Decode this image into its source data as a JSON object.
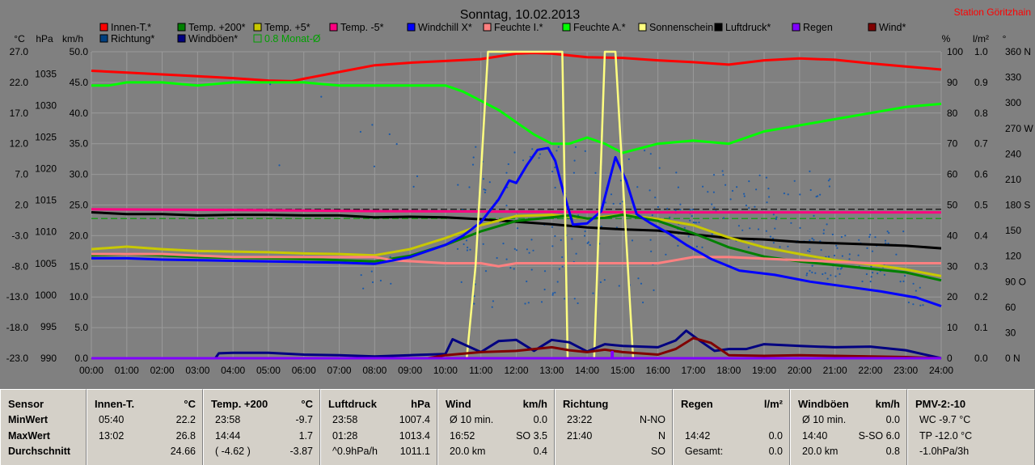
{
  "title": "Sonntag, 10.02.2013",
  "station": "Station Göritzhain",
  "chart_data": {
    "type": "line",
    "x_ticks": [
      "00:00",
      "01:00",
      "02:00",
      "03:00",
      "04:00",
      "05:00",
      "06:00",
      "07:00",
      "08:00",
      "09:00",
      "10:00",
      "11:00",
      "12:00",
      "13:00",
      "14:00",
      "15:00",
      "16:00",
      "17:00",
      "18:00",
      "19:00",
      "20:00",
      "21:00",
      "22:00",
      "23:00",
      "24:00"
    ],
    "left_axes": {
      "celsius": {
        "unit": "°C",
        "ticks": [
          "27.0",
          "22.0",
          "17.0",
          "12.0",
          "7.0",
          "2.0",
          "-3.0",
          "-8.0",
          "-13.0",
          "-18.0",
          "-23.0"
        ]
      },
      "hpa": {
        "unit": "hPa",
        "ticks": [
          "1035",
          "1030",
          "1025",
          "1020",
          "1015",
          "1010",
          "1005",
          "1000",
          "995",
          "990"
        ]
      },
      "kmh": {
        "unit": "km/h",
        "ticks": [
          "50.0",
          "45.0",
          "40.0",
          "35.0",
          "30.0",
          "25.0",
          "20.0",
          "15.0",
          "10.0",
          "5.0",
          "0.0"
        ],
        "range": [
          0,
          50
        ]
      }
    },
    "right_axes": {
      "percent": {
        "unit": "%",
        "ticks": [
          "100",
          "90",
          "80",
          "70",
          "60",
          "50",
          "40",
          "30",
          "20",
          "10",
          "0"
        ]
      },
      "lm2": {
        "unit": "l/m²",
        "ticks": [
          "1.0",
          "0.9",
          "0.8",
          "0.7",
          "0.6",
          "0.5",
          "0.4",
          "0.3",
          "0.2",
          "0.1",
          "0.0"
        ]
      },
      "deg": {
        "unit": "°",
        "ticks": [
          "360 N",
          "330",
          "300",
          "270 W",
          "240",
          "210",
          "180 S",
          "150",
          "120",
          "90 O",
          "60",
          "30",
          "0 N"
        ]
      }
    },
    "legend": [
      {
        "name": "Innen-T.*",
        "color": "#ff0000"
      },
      {
        "name": "Temp. +200*",
        "color": "#008000"
      },
      {
        "name": "Temp. +5*",
        "color": "#c8c800"
      },
      {
        "name": "Temp. -5*",
        "color": "#ff0080"
      },
      {
        "name": "Windchill X*",
        "color": "#0000ff"
      },
      {
        "name": "Feuchte I.*",
        "color": "#ff8080"
      },
      {
        "name": "Feuchte A.*",
        "color": "#00ff00"
      },
      {
        "name": "Sonnenschein",
        "color": "#ffff80"
      },
      {
        "name": "Luftdruck*",
        "color": "#000000"
      },
      {
        "name": "Regen",
        "color": "#8000ff"
      },
      {
        "name": "Wind*",
        "color": "#800000"
      },
      {
        "name": "Richtung*",
        "color": "#004080"
      },
      {
        "name": "Windböen*",
        "color": "#000080"
      },
      {
        "name": "0.8 Monat-Ø",
        "color": "#00a000"
      }
    ],
    "series": [
      {
        "name": "Innen-T.*",
        "axis": "celsius",
        "color": "#ff0000",
        "x": [
          0,
          1,
          2,
          3,
          4,
          5,
          5.67,
          6,
          7,
          8,
          9,
          10,
          11,
          12,
          12.5,
          13,
          14,
          15,
          16,
          17,
          18,
          19,
          20,
          21,
          22,
          23,
          24
        ],
        "y": [
          23.9,
          23.6,
          23.3,
          23.0,
          22.7,
          22.3,
          22.2,
          22.6,
          23.7,
          24.8,
          25.2,
          25.5,
          25.8,
          26.7,
          26.8,
          26.7,
          26.1,
          26.0,
          25.6,
          25.3,
          24.9,
          25.6,
          25.9,
          25.7,
          25.1,
          24.6,
          24.1
        ]
      },
      {
        "name": "Feuchte A.*",
        "axis": "percent",
        "color": "#00ff00",
        "x": [
          0,
          0.5,
          1,
          2,
          3,
          4,
          5,
          6,
          7,
          8,
          9,
          10,
          10.5,
          11,
          11.5,
          12,
          12.5,
          13,
          13.5,
          14,
          14.5,
          15,
          16,
          17,
          18,
          19,
          20,
          21,
          22,
          23,
          24
        ],
        "y": [
          89,
          89,
          90,
          90,
          89,
          90,
          90,
          90,
          89,
          89,
          89,
          89,
          87,
          84,
          81,
          77,
          73,
          70,
          70,
          72,
          70,
          67,
          70,
          71,
          70,
          74,
          76,
          78,
          80,
          82,
          83
        ]
      },
      {
        "name": "Temp. -5*",
        "axis": "celsius",
        "color": "#ff0080",
        "x": [
          0,
          4,
          8,
          12,
          16,
          20,
          24
        ],
        "y": [
          1.3,
          1.2,
          1.0,
          0.9,
          0.8,
          0.8,
          0.8
        ]
      },
      {
        "name": "Luftdruck*",
        "axis": "hpa",
        "color": "#000000",
        "x": [
          0,
          1,
          2,
          3,
          4,
          5,
          6,
          7,
          8,
          9,
          10,
          11,
          12,
          13,
          14,
          15,
          16,
          17,
          18,
          19,
          20,
          21,
          22,
          23,
          23.97,
          24
        ],
        "y": [
          1013.1,
          1012.8,
          1012.8,
          1012.6,
          1012.7,
          1012.7,
          1012.6,
          1012.6,
          1012.3,
          1012.4,
          1012.3,
          1012.0,
          1011.6,
          1011.2,
          1010.7,
          1010.4,
          1010.2,
          1009.6,
          1009.0,
          1008.8,
          1008.4,
          1008.2,
          1008.0,
          1007.8,
          1007.4,
          1007.4
        ]
      },
      {
        "name": "Temp. +5*",
        "axis": "celsius",
        "color": "#c8c800",
        "x": [
          0,
          1,
          2,
          3,
          4,
          5,
          6,
          7,
          8,
          9,
          10,
          11,
          12,
          13,
          14,
          15,
          16,
          17,
          18,
          19,
          20,
          21,
          22,
          23,
          24
        ],
        "y": [
          -5.2,
          -4.8,
          -5.2,
          -5.5,
          -5.6,
          -5.7,
          -5.9,
          -6.0,
          -6.2,
          -5.2,
          -3.4,
          -1.3,
          0.2,
          0.4,
          -0.2,
          0.4,
          -0.3,
          -1.3,
          -3.3,
          -4.9,
          -6.0,
          -7.0,
          -7.7,
          -8.5,
          -9.6
        ]
      },
      {
        "name": "Temp. +200*",
        "axis": "celsius",
        "color": "#008000",
        "x": [
          0,
          1,
          2,
          3,
          4,
          5,
          6,
          7,
          8,
          9,
          10,
          11,
          12,
          13,
          13.5,
          14,
          14.5,
          15,
          16,
          17,
          18,
          19,
          20,
          21,
          22,
          23,
          24
        ],
        "y": [
          -6.2,
          -6.0,
          -6.2,
          -6.5,
          -6.6,
          -6.7,
          -6.8,
          -7.0,
          -7.2,
          -6.3,
          -4.5,
          -2.3,
          -0.6,
          0.0,
          0.3,
          -0.2,
          -0.1,
          0.4,
          -0.6,
          -2.6,
          -4.9,
          -6.4,
          -7.2,
          -7.8,
          -8.4,
          -9.0,
          -10.3
        ]
      },
      {
        "name": "Feuchte I.*",
        "axis": "percent",
        "color": "#ff8080",
        "x": [
          0,
          2,
          4,
          6,
          8,
          8.5,
          10,
          11,
          11.5,
          12,
          13,
          13.5,
          14,
          16,
          16.5,
          17,
          18,
          20,
          22,
          24
        ],
        "y": [
          34,
          34,
          33,
          33,
          33,
          32,
          31,
          31,
          30,
          31,
          31,
          31,
          31,
          31,
          32,
          33,
          33,
          32,
          31,
          31
        ]
      },
      {
        "name": "Windchill X*",
        "axis": "celsius",
        "color": "#0000ff",
        "x": [
          0,
          1,
          2,
          3,
          4,
          5,
          6,
          7,
          8,
          9,
          10,
          10.5,
          11,
          11.5,
          11.8,
          12,
          12.3,
          12.6,
          12.9,
          13.1,
          13.3,
          13.6,
          14.0,
          14.4,
          14.8,
          15.1,
          15.4,
          15.8,
          16.3,
          16.8,
          17.5,
          18.3,
          19.3,
          20.3,
          21.3,
          22.3,
          23.3,
          24
        ],
        "y": [
          -6.7,
          -6.7,
          -6.9,
          -7.0,
          -7.1,
          -7.2,
          -7.3,
          -7.4,
          -7.6,
          -6.5,
          -4.5,
          -3.0,
          -0.8,
          2.9,
          6.0,
          5.6,
          8.5,
          11.0,
          11.3,
          9.2,
          4.8,
          -1.2,
          -1.0,
          1.0,
          9.8,
          6.0,
          0.5,
          -1.0,
          -2.6,
          -4.5,
          -6.8,
          -8.7,
          -9.4,
          -10.5,
          -11.3,
          -12.1,
          -13.1,
          -14.5
        ]
      },
      {
        "name": "Sonnenschein",
        "axis": "lm2",
        "color": "#ffff80",
        "x": [
          0,
          10.6,
          10.85,
          11.2,
          12.5,
          13.3,
          13.45,
          14.2,
          14.5,
          14.8,
          15.3,
          24
        ],
        "y": [
          0,
          0,
          0.3,
          1.0,
          1.0,
          1.0,
          0,
          0,
          1.0,
          1.0,
          0,
          0
        ]
      },
      {
        "name": "Windböen*",
        "axis": "kmh",
        "color": "#000080",
        "x": [
          0,
          3.5,
          3.6,
          4,
          5,
          6,
          7,
          8,
          9,
          10,
          10.2,
          11,
          11.5,
          12,
          12.5,
          13,
          13.5,
          14,
          14.5,
          15,
          16,
          16.5,
          16.8,
          17.2,
          17.6,
          18,
          18.5,
          19,
          20,
          21,
          22,
          23,
          24
        ],
        "y": [
          0,
          0,
          0.8,
          0.9,
          0.9,
          0.6,
          0.5,
          0.3,
          0.5,
          0.7,
          3.1,
          1.0,
          2.8,
          3.0,
          1.2,
          3.0,
          2.6,
          1.1,
          2.3,
          2.0,
          1.8,
          2.9,
          4.5,
          2.8,
          1.2,
          1.5,
          1.5,
          2.3,
          2.0,
          1.8,
          1.9,
          1.3,
          0
        ]
      },
      {
        "name": "Wind*",
        "axis": "kmh",
        "color": "#800000",
        "x": [
          0,
          9.5,
          10,
          11,
          12,
          13,
          13.5,
          14,
          14.5,
          15,
          16,
          16.5,
          17,
          17.5,
          18,
          19,
          20,
          21,
          22,
          23,
          24
        ],
        "y": [
          0,
          0,
          0.5,
          1.0,
          1.2,
          1.8,
          1.3,
          1.0,
          1.4,
          1.0,
          0.6,
          1.5,
          3.3,
          2.5,
          0.5,
          0.4,
          0.5,
          0.4,
          0.3,
          0.2,
          0
        ]
      },
      {
        "name": "Regen",
        "axis": "lm2",
        "color": "#8000ff",
        "x": [
          0,
          14.7,
          14.7,
          14.72,
          14.72,
          24
        ],
        "y": [
          0,
          0,
          0.02,
          0.02,
          0,
          0
        ]
      }
    ],
    "reference_lines": [
      {
        "axis": "celsius",
        "y": 1.3,
        "style": "dashed",
        "color": "#000000"
      },
      {
        "axis": "celsius",
        "y": -0.2,
        "style": "dashed",
        "color": "#00a000",
        "name": "0.8 Monat-Ø"
      }
    ],
    "grid": true
  },
  "panels": [
    {
      "id": "sensor",
      "header": "Sensor",
      "unit": "",
      "rows": [
        {
          "a": "MinWert",
          "b": ""
        },
        {
          "a": "MaxWert",
          "b": ""
        },
        {
          "a": "Durchschnitt",
          "b": ""
        },
        {
          "a": "",
          "b": ""
        }
      ]
    },
    {
      "id": "innen",
      "header": "Innen-T.",
      "unit": "°C",
      "rows": [
        {
          "a": "05:40",
          "b": "22.2"
        },
        {
          "a": "13:02",
          "b": "26.8"
        },
        {
          "a": "",
          "b": "24.66"
        }
      ]
    },
    {
      "id": "temp200",
      "header": "Temp. +200",
      "unit": "°C",
      "rows": [
        {
          "a": "23:58",
          "b": "-9.7"
        },
        {
          "a": "14:44",
          "b": "1.7"
        },
        {
          "a": "( -4.62 )",
          "b": "-3.87"
        }
      ]
    },
    {
      "id": "luftdruck",
      "header": "Luftdruck",
      "unit": "hPa",
      "rows": [
        {
          "a": "23:58",
          "b": "1007.4"
        },
        {
          "a": "01:28",
          "b": "1013.4"
        },
        {
          "a": "^0.9hPa/h",
          "b": "1011.1"
        }
      ]
    },
    {
      "id": "wind",
      "header": "Wind",
      "unit": "km/h",
      "rows": [
        {
          "a": "Ø 10 min.",
          "b": "0.0"
        },
        {
          "a": "16:52",
          "b": "SO 3.5"
        },
        {
          "a": "20.0 km",
          "b": "0.4"
        }
      ]
    },
    {
      "id": "richtung",
      "header": "Richtung",
      "unit": "",
      "rows": [
        {
          "a": "23:22",
          "b": "N-NO"
        },
        {
          "a": "21:40",
          "b": "N"
        },
        {
          "a": "",
          "b": "SO"
        }
      ]
    },
    {
      "id": "regen",
      "header": "Regen",
      "unit": "l/m²",
      "rows": [
        {
          "a": "",
          "b": ""
        },
        {
          "a": "14:42",
          "b": "0.0"
        },
        {
          "a": "Gesamt:",
          "b": "0.0"
        }
      ]
    },
    {
      "id": "windboeen",
      "header": "Windböen",
      "unit": "km/h",
      "rows": [
        {
          "a": "Ø 10 min.",
          "b": "0.0"
        },
        {
          "a": "14:40",
          "b": "S-SO 6.0"
        },
        {
          "a": "20.0 km",
          "b": "0.8"
        }
      ]
    },
    {
      "id": "pmv",
      "header": "PMV-2:-10",
      "unit": "",
      "rows": [
        {
          "a": "WC -9.7 °C",
          "b": ""
        },
        {
          "a": "TP -12.0 °C",
          "b": ""
        },
        {
          "a": "-1.0hPa/3h",
          "b": ""
        }
      ]
    }
  ]
}
